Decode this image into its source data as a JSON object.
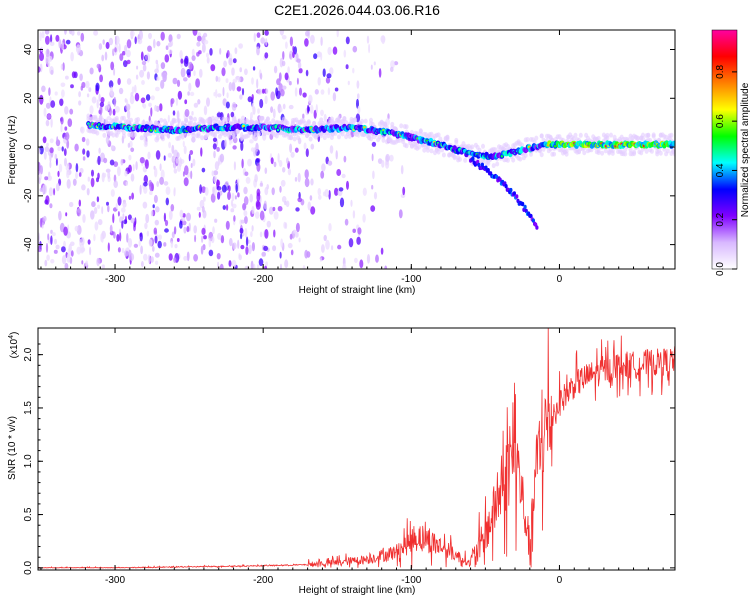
{
  "title": "C2E1.2026.044.03.06.R16",
  "charts": [
    {
      "type": "heatmap",
      "xlabel": "Height of straight line (km)",
      "ylabel": "Frequency (Hz)",
      "xlim": [
        -352,
        78
      ],
      "ylim": [
        -50,
        48
      ],
      "xticks": [
        -300,
        -200,
        -100,
        0
      ],
      "yticks": [
        -40,
        -20,
        0,
        20,
        40
      ],
      "xtick_labels": [
        "-300",
        "-200",
        "-100",
        "0"
      ],
      "ytick_labels": [
        "-40",
        "-20",
        "0",
        "20",
        "40"
      ],
      "colorbar": {
        "label": "Normalized spectral amplitude",
        "range": [
          0,
          0.97
        ],
        "ticks": [
          0.0,
          0.2,
          0.4,
          0.6,
          0.8
        ],
        "tick_labels": [
          "0.0",
          "0.2",
          "0.4",
          "0.6",
          "0.8"
        ],
        "colormap": [
          "#ffffff",
          "#d8b8ff",
          "#8000ff",
          "#0000ff",
          "#00ffff",
          "#00ff00",
          "#ffff00",
          "#ff8000",
          "#ff0000",
          "#ff00a0"
        ]
      },
      "ridge": {
        "x": [
          -318,
          -290,
          -260,
          -230,
          -200,
          -170,
          -140,
          -115,
          -100,
          -80,
          -60,
          -45,
          -30,
          -10,
          10,
          40,
          78
        ],
        "y": [
          9,
          8,
          7,
          8,
          8,
          7,
          8,
          6,
          4,
          1,
          -3,
          -4,
          -2,
          1,
          1,
          1,
          1
        ]
      },
      "tail": {
        "x": [
          -60,
          -50,
          -40,
          -30,
          -20,
          -15
        ],
        "y": [
          -5,
          -9,
          -14,
          -20,
          -28,
          -33
        ]
      },
      "noise_extent_x": -160
    },
    {
      "type": "line",
      "xlabel": "Height of straight line (km)",
      "ylabel": "SNR (10 * v/v)",
      "multiplier": "(x10",
      "multiplier_exp": "4",
      "multiplier_close": ")",
      "xlim": [
        -352,
        78
      ],
      "ylim": [
        -0.02,
        2.25
      ],
      "xticks": [
        -300,
        -200,
        -100,
        0
      ],
      "yticks": [
        0.0,
        0.5,
        1.0,
        1.5,
        2.0
      ],
      "xtick_labels": [
        "-300",
        "-200",
        "-100",
        "0"
      ],
      "ytick_labels": [
        "0.0",
        "0.5",
        "1.0",
        "1.5",
        "2.0"
      ],
      "color": "#f03030",
      "series": [
        {
          "x": [
            -352,
            -300,
            -250,
            -200,
            -170,
            -150,
            -130,
            -110,
            -95,
            -80,
            -70,
            -60,
            -50,
            -40,
            -30,
            -20,
            -15,
            -10,
            0,
            10,
            20,
            30,
            40,
            50,
            60,
            70,
            78
          ],
          "y": [
            0.0,
            0.0,
            0.01,
            0.02,
            0.03,
            0.05,
            0.08,
            0.15,
            0.3,
            0.2,
            0.12,
            0.04,
            0.3,
            0.7,
            1.1,
            0.2,
            1.0,
            1.3,
            1.55,
            1.72,
            1.8,
            1.85,
            1.9,
            1.9,
            1.92,
            1.93,
            1.95
          ]
        }
      ]
    }
  ]
}
